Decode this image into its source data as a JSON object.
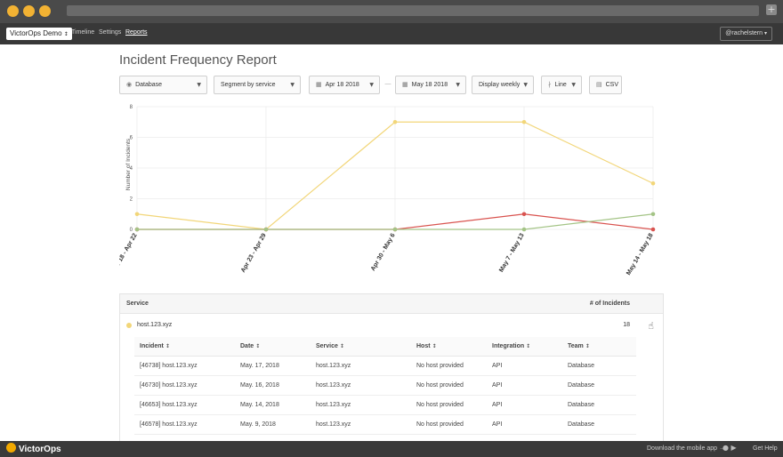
{
  "browser": {
    "dots": [
      "#f2b233",
      "#f2b233",
      "#f2b233"
    ],
    "newtab_icon": "+"
  },
  "nav": {
    "org_label": "VictorOps Demo",
    "org_chevron": "↕",
    "links": [
      "Timeline",
      "Settings",
      "Reports"
    ],
    "active": "Reports",
    "user_label": "@rachelstern",
    "user_chevron": "▾"
  },
  "page": {
    "title": "Incident Frequency Report"
  },
  "toolbar": {
    "team_icon": "team-icon",
    "team_label": "Database",
    "segment_label": "Segment by service",
    "start_date": "Apr 18 2018",
    "separator": "—",
    "end_date": "May 18 2018",
    "display_label": "Display weekly",
    "chart_type_label": "Line",
    "csv_label": "CSV"
  },
  "chart_data": {
    "type": "line",
    "ylabel": "Number of Incidents",
    "ylim": [
      0,
      8
    ],
    "yticks": [
      0,
      2,
      4,
      6,
      8
    ],
    "categories": [
      "Apr 18 - Apr 22",
      "Apr 23 - Apr 29",
      "Apr 30 - May 6",
      "May 7 - May 13",
      "May 14 - May 18"
    ],
    "grid": true,
    "series": [
      {
        "color": "#f2d679",
        "values": [
          1,
          0,
          7,
          7,
          3
        ]
      },
      {
        "color": "#d9534f",
        "values": [
          0,
          0,
          0,
          1,
          0
        ]
      },
      {
        "color": "#a4c486",
        "values": [
          0,
          0,
          0,
          0,
          1
        ]
      }
    ]
  },
  "table": {
    "header_service": "Service",
    "header_count": "# of Incidents",
    "service": {
      "name": "host.123.xyz",
      "count": "18",
      "dot_color": "#f2d679",
      "action_icon": "pointer-hand-icon"
    },
    "sub_headers": [
      "Incident",
      "Date",
      "Service",
      "Host",
      "Integration",
      "Team"
    ],
    "sort_icon": "↕",
    "rows": [
      [
        "[46738] host.123.xyz",
        "May. 17, 2018",
        "host.123.xyz",
        "No host provided",
        "API",
        "Database"
      ],
      [
        "[46730] host.123.xyz",
        "May. 16, 2018",
        "host.123.xyz",
        "No host provided",
        "API",
        "Database"
      ],
      [
        "[46653] host.123.xyz",
        "May. 14, 2018",
        "host.123.xyz",
        "No host provided",
        "API",
        "Database"
      ],
      [
        "[46578] host.123.xyz",
        "May. 9, 2018",
        "host.123.xyz",
        "No host provided",
        "API",
        "Database"
      ]
    ]
  },
  "footer": {
    "logo_text": "VictorOps",
    "mobile_text": "Download the mobile app →",
    "help_text": "Get Help"
  }
}
